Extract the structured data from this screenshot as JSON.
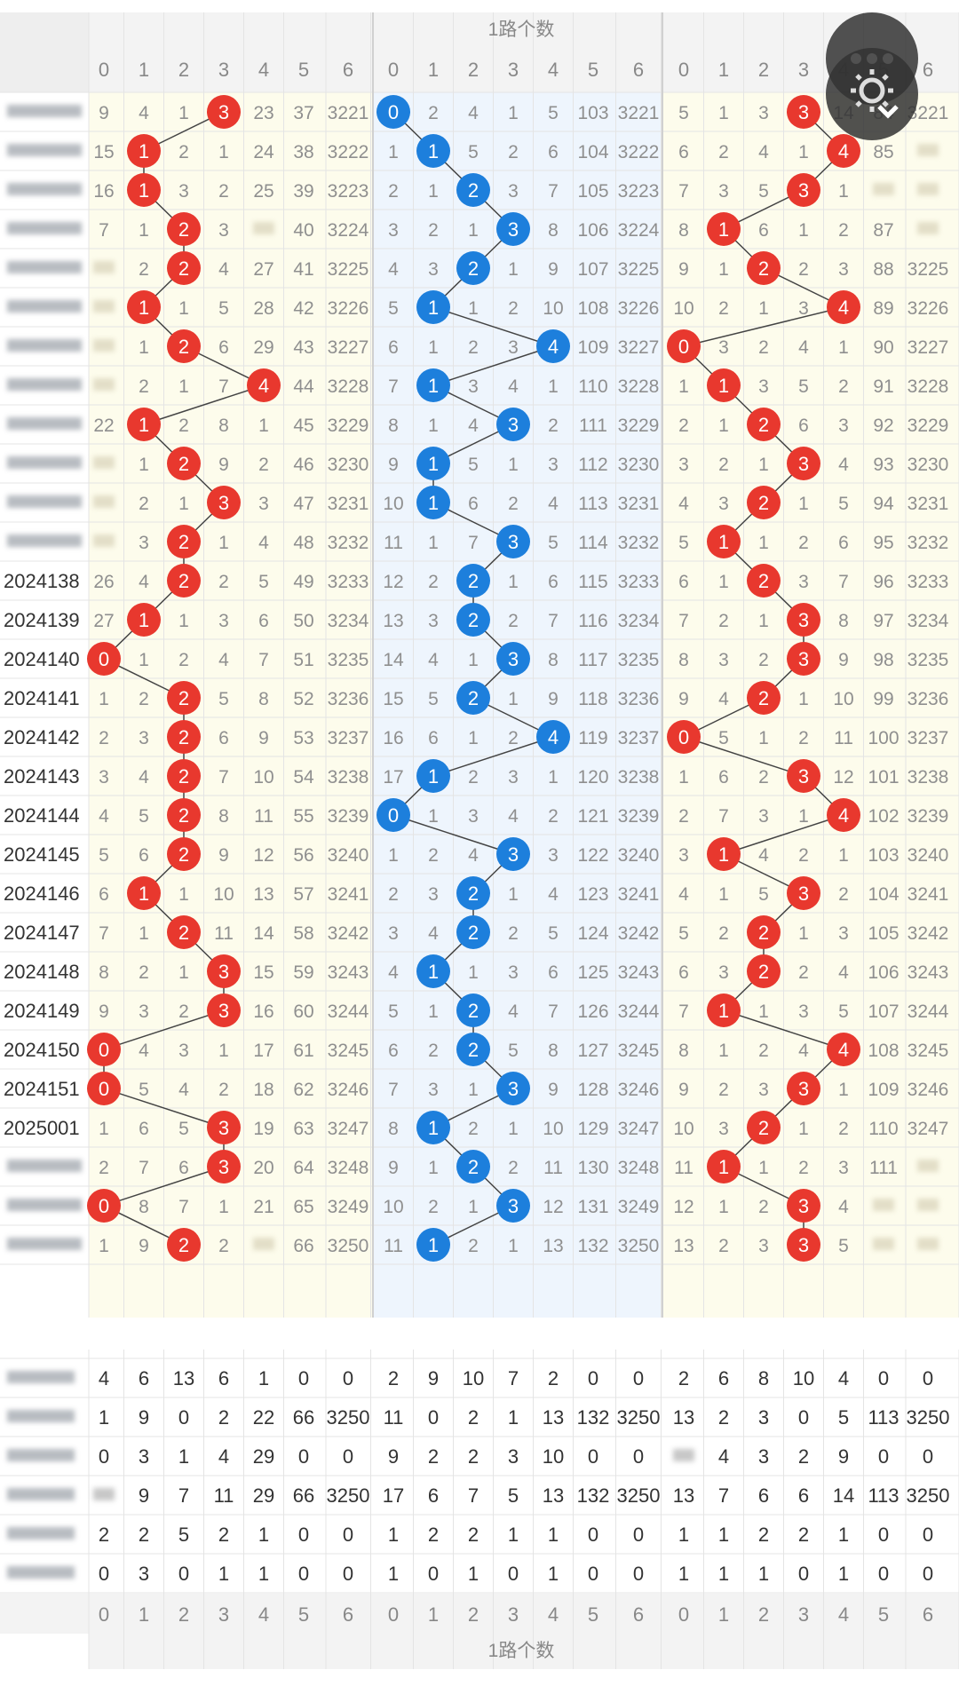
{
  "header": {
    "group_title": "1路个数"
  },
  "footer": {
    "group_title": "1路个数"
  },
  "columns": [
    "0",
    "1",
    "2",
    "3",
    "4",
    "5",
    "6",
    "0",
    "1",
    "2",
    "3",
    "4",
    "5",
    "6",
    "0",
    "1",
    "2",
    "3",
    "4",
    "5",
    "6"
  ],
  "fab_icons": [
    "more-icon",
    "settings-icon",
    "chevron-down-icon"
  ],
  "colors": {
    "red": "#e8382e",
    "blue": "#1d7fdc",
    "yellow_bg": "#fdfcec",
    "blue_bg": "#eef5fd",
    "grid": "#e4e4e4",
    "text": "#8f8f8f"
  },
  "rows": [
    {
      "id": "",
      "g1": [
        9,
        4,
        1,
        3,
        23,
        37,
        3221
      ],
      "g2": [
        0,
        2,
        4,
        1,
        5,
        103,
        3221
      ],
      "g3": [
        5,
        1,
        3,
        3,
        14,
        84,
        3221
      ]
    },
    {
      "id": "",
      "g1": [
        15,
        1,
        2,
        1,
        24,
        38,
        3222
      ],
      "g2": [
        1,
        1,
        5,
        2,
        6,
        104,
        3222
      ],
      "g3": [
        6,
        2,
        4,
        1,
        4,
        85,
        ""
      ]
    },
    {
      "id": "",
      "g1": [
        16,
        1,
        3,
        2,
        25,
        39,
        3223
      ],
      "g2": [
        2,
        1,
        2,
        3,
        7,
        105,
        3223
      ],
      "g3": [
        7,
        3,
        5,
        3,
        1,
        "",
        ""
      ]
    },
    {
      "id": "",
      "g1": [
        7,
        1,
        2,
        3,
        "",
        40,
        3224
      ],
      "g2": [
        3,
        2,
        1,
        3,
        8,
        106,
        3224
      ],
      "g3": [
        8,
        1,
        6,
        1,
        2,
        87,
        ""
      ]
    },
    {
      "id": "",
      "g1": [
        "",
        2,
        2,
        4,
        27,
        41,
        3225
      ],
      "g2": [
        4,
        3,
        2,
        1,
        9,
        107,
        3225
      ],
      "g3": [
        9,
        1,
        2,
        2,
        3,
        88,
        3225
      ]
    },
    {
      "id": "",
      "g1": [
        "",
        1,
        1,
        5,
        28,
        42,
        3226
      ],
      "g2": [
        5,
        1,
        1,
        2,
        10,
        108,
        3226
      ],
      "g3": [
        10,
        2,
        1,
        3,
        4,
        89,
        3226
      ]
    },
    {
      "id": "",
      "g1": [
        "",
        1,
        2,
        6,
        29,
        43,
        3227
      ],
      "g2": [
        6,
        1,
        2,
        3,
        4,
        109,
        3227
      ],
      "g3": [
        0,
        3,
        2,
        4,
        1,
        90,
        3227
      ]
    },
    {
      "id": "",
      "g1": [
        "",
        2,
        1,
        7,
        4,
        44,
        3228
      ],
      "g2": [
        7,
        1,
        3,
        4,
        1,
        110,
        3228
      ],
      "g3": [
        1,
        1,
        3,
        5,
        2,
        91,
        3228
      ]
    },
    {
      "id": "",
      "g1": [
        22,
        1,
        2,
        8,
        1,
        45,
        3229
      ],
      "g2": [
        8,
        1,
        4,
        3,
        2,
        111,
        3229
      ],
      "g3": [
        2,
        1,
        2,
        6,
        3,
        92,
        3229
      ]
    },
    {
      "id": "",
      "g1": [
        "",
        1,
        2,
        9,
        2,
        46,
        3230
      ],
      "g2": [
        9,
        1,
        5,
        1,
        3,
        112,
        3230
      ],
      "g3": [
        3,
        2,
        1,
        3,
        4,
        93,
        3230
      ]
    },
    {
      "id": "",
      "g1": [
        "",
        2,
        1,
        3,
        3,
        47,
        3231
      ],
      "g2": [
        10,
        1,
        6,
        2,
        4,
        113,
        3231
      ],
      "g3": [
        4,
        3,
        2,
        1,
        5,
        94,
        3231
      ]
    },
    {
      "id": "",
      "g1": [
        "",
        3,
        2,
        1,
        4,
        48,
        3232
      ],
      "g2": [
        11,
        1,
        7,
        3,
        5,
        114,
        3232
      ],
      "g3": [
        5,
        1,
        1,
        2,
        6,
        95,
        3232
      ]
    },
    {
      "id": "2024138",
      "g1": [
        26,
        4,
        2,
        2,
        5,
        49,
        3233
      ],
      "g2": [
        12,
        2,
        2,
        1,
        6,
        115,
        3233
      ],
      "g3": [
        6,
        1,
        2,
        3,
        7,
        96,
        3233
      ]
    },
    {
      "id": "2024139",
      "g1": [
        27,
        1,
        1,
        3,
        6,
        50,
        3234
      ],
      "g2": [
        13,
        3,
        2,
        2,
        7,
        116,
        3234
      ],
      "g3": [
        7,
        2,
        1,
        3,
        8,
        97,
        3234
      ]
    },
    {
      "id": "2024140",
      "g1": [
        0,
        1,
        2,
        4,
        7,
        51,
        3235
      ],
      "g2": [
        14,
        4,
        1,
        3,
        8,
        117,
        3235
      ],
      "g3": [
        8,
        3,
        2,
        3,
        9,
        98,
        3235
      ]
    },
    {
      "id": "2024141",
      "g1": [
        1,
        2,
        2,
        5,
        8,
        52,
        3236
      ],
      "g2": [
        15,
        5,
        2,
        1,
        9,
        118,
        3236
      ],
      "g3": [
        9,
        4,
        2,
        1,
        10,
        99,
        3236
      ]
    },
    {
      "id": "2024142",
      "g1": [
        2,
        3,
        2,
        6,
        9,
        53,
        3237
      ],
      "g2": [
        16,
        6,
        1,
        2,
        4,
        119,
        3237
      ],
      "g3": [
        0,
        5,
        1,
        2,
        11,
        100,
        3237
      ]
    },
    {
      "id": "2024143",
      "g1": [
        3,
        4,
        2,
        7,
        10,
        54,
        3238
      ],
      "g2": [
        17,
        1,
        2,
        3,
        1,
        120,
        3238
      ],
      "g3": [
        1,
        6,
        2,
        3,
        12,
        101,
        3238
      ]
    },
    {
      "id": "2024144",
      "g1": [
        4,
        5,
        2,
        8,
        11,
        55,
        3239
      ],
      "g2": [
        0,
        1,
        3,
        4,
        2,
        121,
        3239
      ],
      "g3": [
        2,
        7,
        3,
        1,
        4,
        102,
        3239
      ]
    },
    {
      "id": "2024145",
      "g1": [
        5,
        6,
        2,
        9,
        12,
        56,
        3240
      ],
      "g2": [
        1,
        2,
        4,
        3,
        3,
        122,
        3240
      ],
      "g3": [
        3,
        1,
        4,
        2,
        1,
        103,
        3240
      ]
    },
    {
      "id": "2024146",
      "g1": [
        6,
        1,
        1,
        10,
        13,
        57,
        3241
      ],
      "g2": [
        2,
        3,
        2,
        1,
        4,
        123,
        3241
      ],
      "g3": [
        4,
        1,
        5,
        3,
        2,
        104,
        3241
      ]
    },
    {
      "id": "2024147",
      "g1": [
        7,
        1,
        2,
        11,
        14,
        58,
        3242
      ],
      "g2": [
        3,
        4,
        2,
        2,
        5,
        124,
        3242
      ],
      "g3": [
        5,
        2,
        2,
        1,
        3,
        105,
        3242
      ]
    },
    {
      "id": "2024148",
      "g1": [
        8,
        2,
        1,
        3,
        15,
        59,
        3243
      ],
      "g2": [
        4,
        1,
        1,
        3,
        6,
        125,
        3243
      ],
      "g3": [
        6,
        3,
        2,
        2,
        4,
        106,
        3243
      ]
    },
    {
      "id": "2024149",
      "g1": [
        9,
        3,
        2,
        3,
        16,
        60,
        3244
      ],
      "g2": [
        5,
        1,
        2,
        4,
        7,
        126,
        3244
      ],
      "g3": [
        7,
        1,
        1,
        3,
        5,
        107,
        3244
      ]
    },
    {
      "id": "2024150",
      "g1": [
        0,
        4,
        3,
        1,
        17,
        61,
        3245
      ],
      "g2": [
        6,
        2,
        2,
        5,
        8,
        127,
        3245
      ],
      "g3": [
        8,
        1,
        2,
        4,
        4,
        108,
        3245
      ]
    },
    {
      "id": "2024151",
      "g1": [
        0,
        5,
        4,
        2,
        18,
        62,
        3246
      ],
      "g2": [
        7,
        3,
        1,
        3,
        9,
        128,
        3246
      ],
      "g3": [
        9,
        2,
        3,
        3,
        1,
        109,
        3246
      ]
    },
    {
      "id": "2025001",
      "g1": [
        1,
        6,
        5,
        3,
        19,
        63,
        3247
      ],
      "g2": [
        8,
        1,
        2,
        1,
        10,
        129,
        3247
      ],
      "g3": [
        10,
        3,
        2,
        1,
        2,
        110,
        3247
      ]
    },
    {
      "id": "",
      "g1": [
        2,
        7,
        6,
        3,
        20,
        64,
        3248
      ],
      "g2": [
        9,
        1,
        2,
        2,
        11,
        130,
        3248
      ],
      "g3": [
        11,
        1,
        1,
        2,
        3,
        111,
        ""
      ]
    },
    {
      "id": "",
      "g1": [
        0,
        8,
        7,
        1,
        21,
        65,
        3249
      ],
      "g2": [
        10,
        2,
        1,
        3,
        12,
        131,
        3249
      ],
      "g3": [
        12,
        1,
        2,
        3,
        4,
        "",
        ""
      ]
    },
    {
      "id": "",
      "g1": [
        1,
        9,
        2,
        2,
        "",
        66,
        3250
      ],
      "g2": [
        11,
        1,
        2,
        1,
        13,
        132,
        3250
      ],
      "g3": [
        13,
        2,
        3,
        3,
        5,
        "",
        ""
      ]
    }
  ],
  "balls": {
    "g1": [
      3,
      1,
      1,
      2,
      2,
      1,
      2,
      4,
      1,
      2,
      3,
      2,
      2,
      1,
      0,
      2,
      2,
      2,
      2,
      2,
      1,
      2,
      3,
      3,
      0,
      0,
      3,
      3,
      0,
      2
    ],
    "g2": [
      0,
      1,
      2,
      3,
      2,
      1,
      4,
      1,
      3,
      1,
      1,
      3,
      2,
      2,
      3,
      2,
      4,
      1,
      0,
      3,
      2,
      2,
      1,
      2,
      2,
      3,
      1,
      2,
      3,
      1
    ],
    "g3": [
      3,
      4,
      3,
      1,
      2,
      4,
      0,
      1,
      2,
      3,
      2,
      1,
      2,
      3,
      3,
      2,
      0,
      3,
      4,
      1,
      3,
      2,
      2,
      1,
      4,
      3,
      2,
      1,
      3,
      3
    ]
  },
  "stats": [
    {
      "label": "",
      "values": [
        4,
        6,
        13,
        6,
        1,
        0,
        0,
        2,
        9,
        10,
        7,
        2,
        0,
        0,
        2,
        6,
        8,
        10,
        4,
        0,
        0
      ]
    },
    {
      "label": "",
      "values": [
        1,
        9,
        0,
        2,
        22,
        66,
        3250,
        11,
        0,
        2,
        1,
        13,
        132,
        3250,
        13,
        2,
        3,
        0,
        5,
        113,
        3250
      ]
    },
    {
      "label": "",
      "values": [
        0,
        3,
        1,
        4,
        29,
        0,
        0,
        9,
        2,
        2,
        3,
        10,
        0,
        0,
        "",
        4,
        3,
        2,
        9,
        0,
        0
      ]
    },
    {
      "label": "",
      "values": [
        "",
        9,
        7,
        11,
        29,
        66,
        3250,
        17,
        6,
        7,
        5,
        13,
        132,
        3250,
        13,
        7,
        6,
        6,
        14,
        113,
        3250
      ]
    },
    {
      "label": "",
      "values": [
        2,
        2,
        5,
        2,
        1,
        0,
        0,
        1,
        2,
        2,
        1,
        1,
        0,
        0,
        1,
        1,
        2,
        2,
        1,
        0,
        0
      ]
    },
    {
      "label": "",
      "values": [
        0,
        3,
        0,
        1,
        1,
        0,
        0,
        1,
        0,
        1,
        0,
        1,
        0,
        0,
        1,
        1,
        1,
        0,
        1,
        0,
        0
      ]
    }
  ]
}
